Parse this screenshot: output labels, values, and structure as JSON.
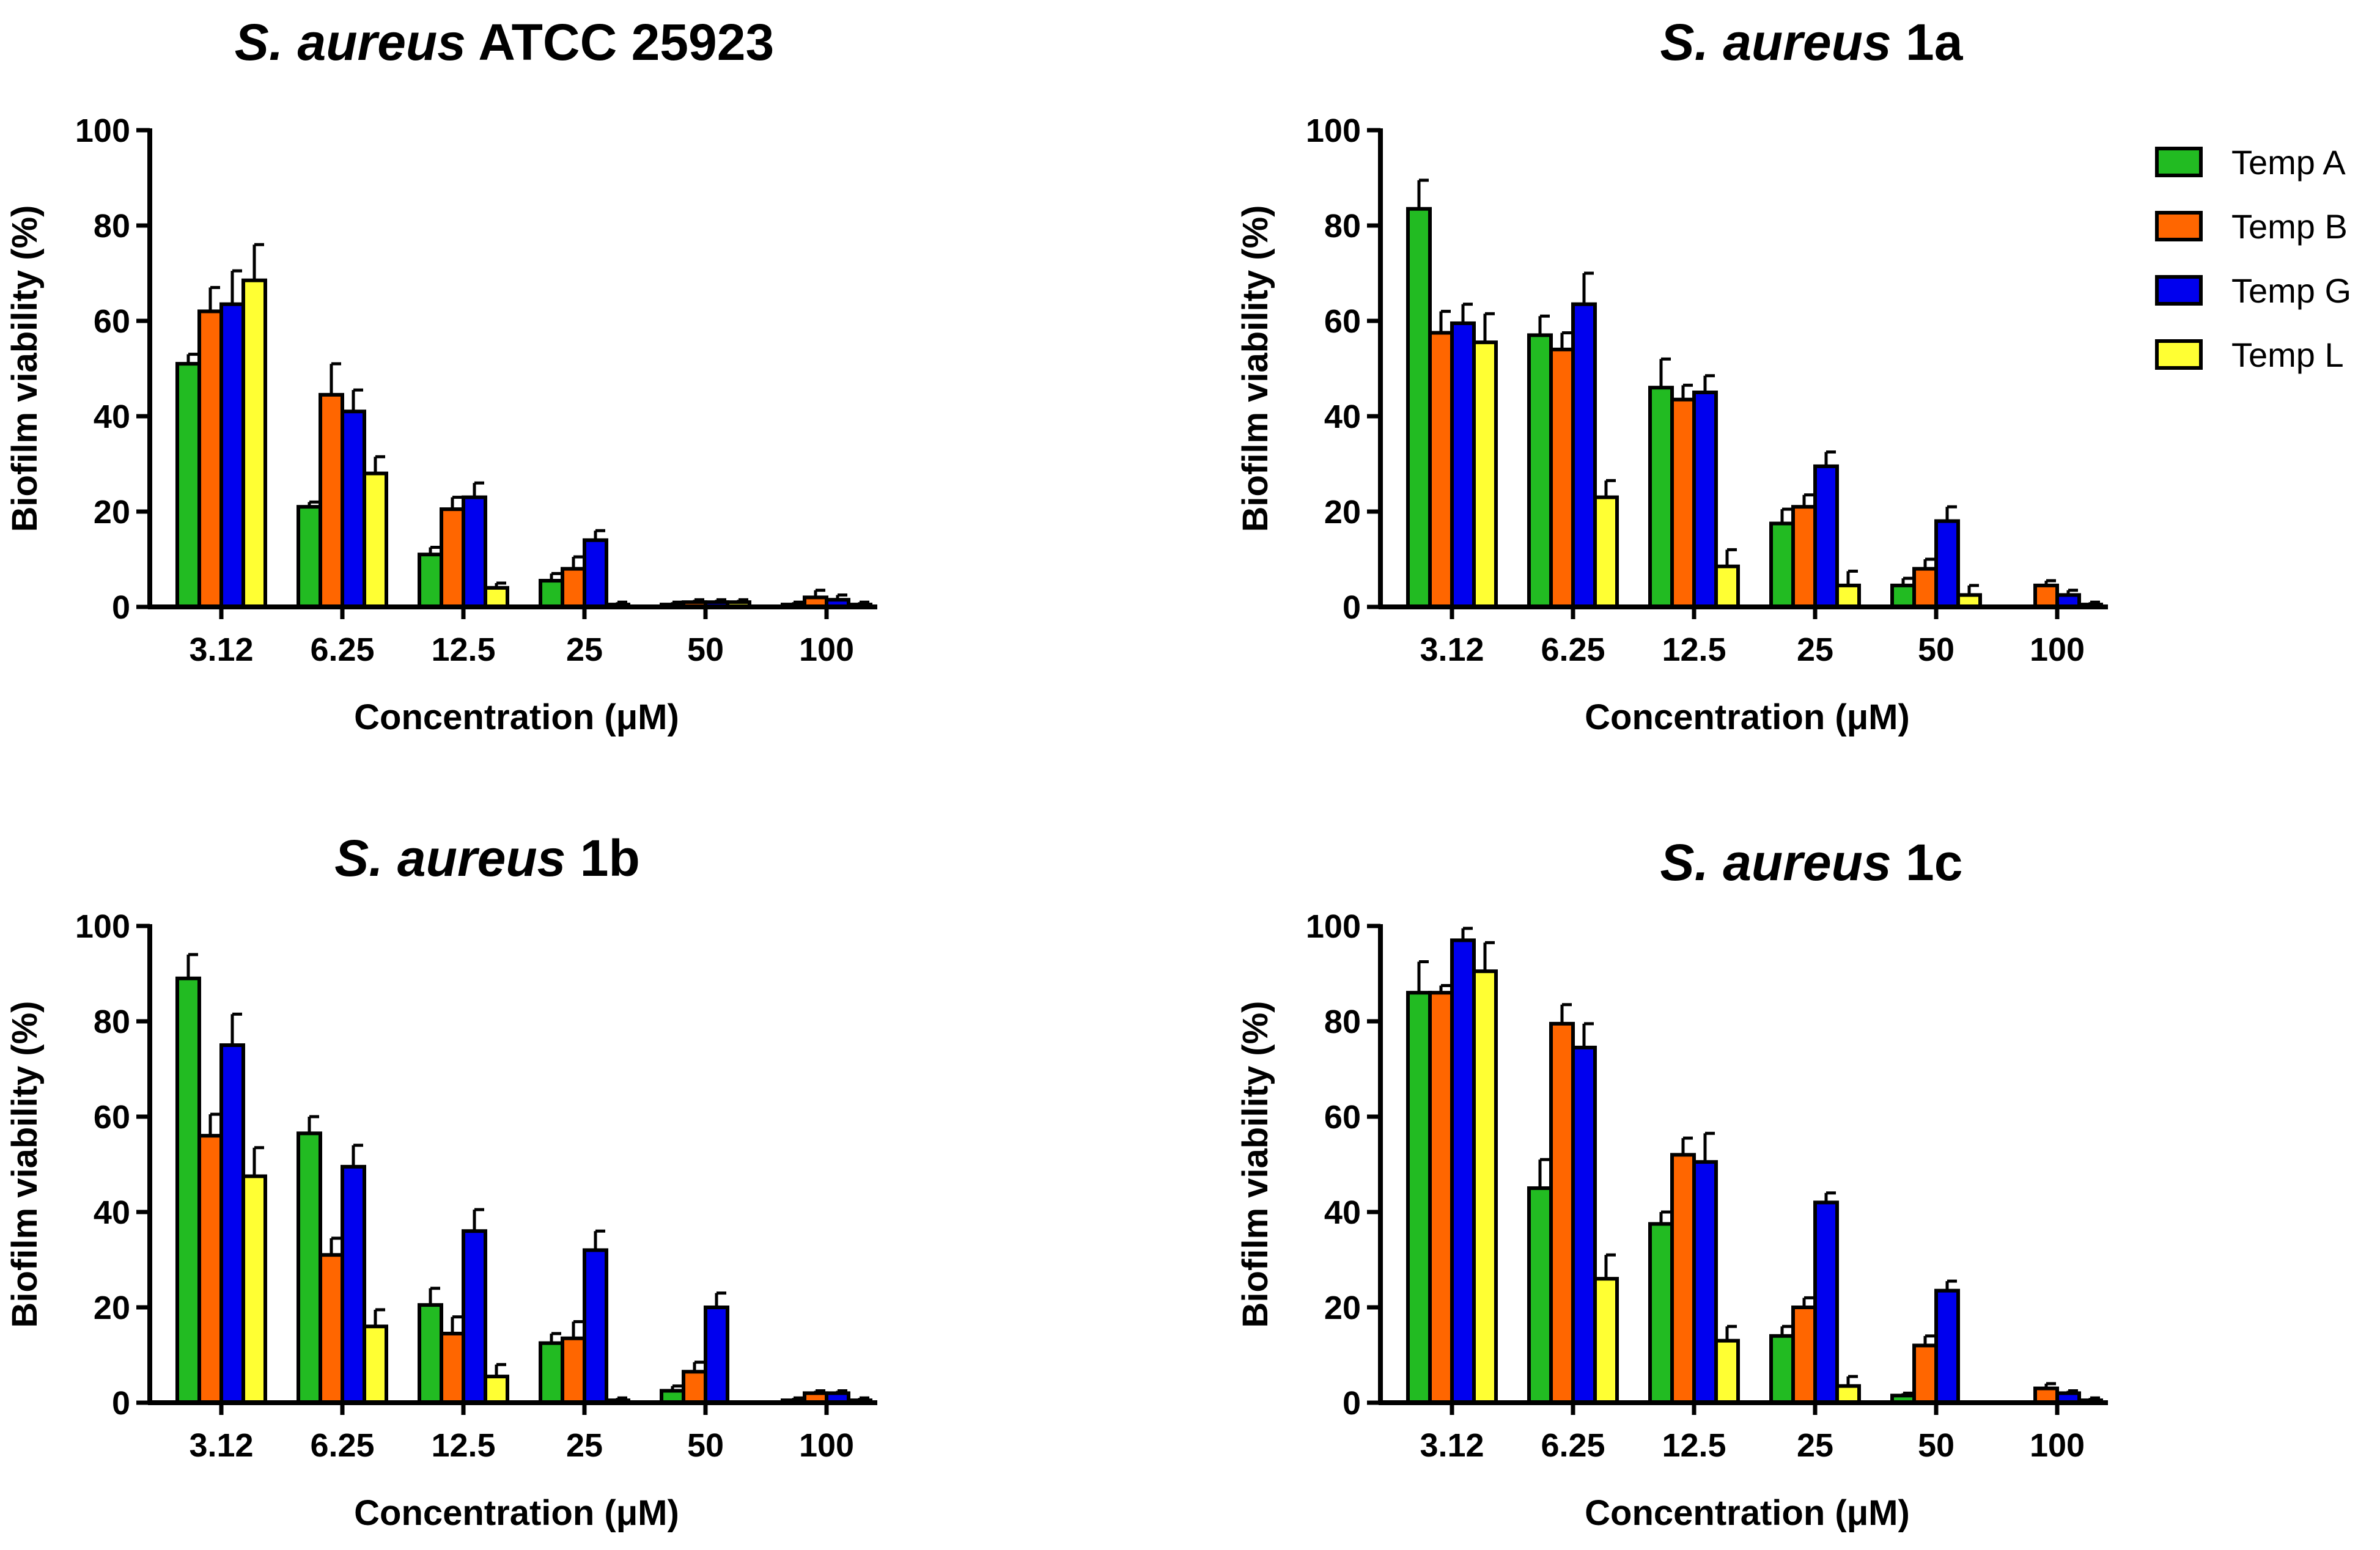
{
  "chart_data": [
    {
      "type": "bar",
      "title": "ATCC 25923",
      "title_italic": "S. aureus",
      "xlabel": "Concentration (μM)",
      "ylabel": "Biofilm viability (%)",
      "ylim": [
        0,
        100
      ],
      "yticks": [
        "0",
        "20",
        "40",
        "60",
        "80",
        "100"
      ],
      "categories": [
        "3.12",
        "6.25",
        "12.5",
        "25",
        "50",
        "100"
      ],
      "series": [
        {
          "name": "Temp A",
          "values": [
            51,
            21,
            11,
            5.5,
            0.5,
            0.5
          ],
          "errors": [
            2,
            1,
            1.5,
            1.5,
            0.5,
            0.5
          ]
        },
        {
          "name": "Temp B",
          "values": [
            62,
            44.5,
            20.5,
            8,
            1,
            2
          ],
          "errors": [
            5,
            6.5,
            2.5,
            2.5,
            0.5,
            1.5
          ]
        },
        {
          "name": "Temp G",
          "values": [
            63.5,
            41,
            23,
            14,
            1,
            1.5
          ],
          "errors": [
            7,
            4.5,
            3,
            2,
            0.5,
            1
          ]
        },
        {
          "name": "Temp L",
          "values": [
            68.5,
            28,
            4,
            0.5,
            1,
            0.5
          ],
          "errors": [
            7.5,
            3.5,
            1,
            0.5,
            0.5,
            0.5
          ]
        }
      ]
    },
    {
      "type": "bar",
      "title": "1a",
      "title_italic": "S. aureus",
      "xlabel": "Concentration (μM)",
      "ylabel": "Biofilm viability (%)",
      "ylim": [
        0,
        100
      ],
      "yticks": [
        "0",
        "20",
        "40",
        "60",
        "80",
        "100"
      ],
      "categories": [
        "3.12",
        "6.25",
        "12.5",
        "25",
        "50",
        "100"
      ],
      "series": [
        {
          "name": "Temp A",
          "values": [
            83.5,
            57,
            46,
            17.5,
            4.5,
            0
          ],
          "errors": [
            6,
            4,
            6,
            3,
            1.5,
            0
          ]
        },
        {
          "name": "Temp B",
          "values": [
            57.5,
            54,
            43.5,
            21,
            8,
            4.5
          ],
          "errors": [
            4.5,
            3.5,
            3,
            2.5,
            2,
            1
          ]
        },
        {
          "name": "Temp G",
          "values": [
            59.5,
            63.5,
            45,
            29.5,
            18,
            2.5
          ],
          "errors": [
            4,
            6.5,
            3.5,
            3,
            3,
            1
          ]
        },
        {
          "name": "Temp L",
          "values": [
            55.5,
            23,
            8.5,
            4.5,
            2.5,
            0.5
          ],
          "errors": [
            6,
            3.5,
            3.5,
            3,
            2,
            0.5
          ]
        }
      ]
    },
    {
      "type": "bar",
      "title": "1b",
      "title_italic": "S. aureus",
      "xlabel": "Concentration (μM)",
      "ylabel": "Biofilm viability (%)",
      "ylim": [
        0,
        100
      ],
      "yticks": [
        "0",
        "20",
        "40",
        "60",
        "80",
        "100"
      ],
      "categories": [
        "3.12",
        "6.25",
        "12.5",
        "25",
        "50",
        "100"
      ],
      "series": [
        {
          "name": "Temp A",
          "values": [
            89,
            56.5,
            20.5,
            12.5,
            2.5,
            0.5
          ],
          "errors": [
            5,
            3.5,
            3.5,
            2,
            1,
            0.5
          ]
        },
        {
          "name": "Temp B",
          "values": [
            56,
            31,
            14.5,
            13.5,
            6.5,
            2
          ],
          "errors": [
            4.5,
            3.5,
            3.5,
            3.5,
            2,
            0.5
          ]
        },
        {
          "name": "Temp G",
          "values": [
            75,
            49.5,
            36,
            32,
            20,
            2
          ],
          "errors": [
            6.5,
            4.5,
            4.5,
            4,
            3,
            0.5
          ]
        },
        {
          "name": "Temp L",
          "values": [
            47.5,
            16,
            5.5,
            0.5,
            0,
            0.5
          ],
          "errors": [
            6,
            3.5,
            2.5,
            0.5,
            0,
            0.5
          ]
        }
      ]
    },
    {
      "type": "bar",
      "title": "1c",
      "title_italic": "S. aureus",
      "xlabel": "Concentration (μM)",
      "ylabel": "Biofilm viability (%)",
      "ylim": [
        0,
        100
      ],
      "yticks": [
        "0",
        "20",
        "40",
        "60",
        "80",
        "100"
      ],
      "categories": [
        "3.12",
        "6.25",
        "12.5",
        "25",
        "50",
        "100"
      ],
      "series": [
        {
          "name": "Temp A",
          "values": [
            86,
            45,
            37.5,
            14,
            1.5,
            0
          ],
          "errors": [
            6.5,
            6,
            2.5,
            2,
            0.5,
            0
          ]
        },
        {
          "name": "Temp B",
          "values": [
            86,
            79.5,
            52,
            20,
            12,
            3
          ],
          "errors": [
            1.5,
            4,
            3.5,
            2,
            2,
            1
          ]
        },
        {
          "name": "Temp G",
          "values": [
            97,
            74.5,
            50.5,
            42,
            23.5,
            2
          ],
          "errors": [
            2.5,
            5,
            6,
            2,
            2,
            0.5
          ]
        },
        {
          "name": "Temp L",
          "values": [
            90.5,
            26,
            13,
            3.5,
            0,
            0.5
          ],
          "errors": [
            6,
            5,
            3,
            2,
            0,
            0.5
          ]
        }
      ]
    }
  ],
  "legend": {
    "position": "top-right",
    "items": [
      {
        "label": "Temp A",
        "color": "#22bb22"
      },
      {
        "label": "Temp B",
        "color": "#ff6600"
      },
      {
        "label": "Temp G",
        "color": "#0000ee"
      },
      {
        "label": "Temp L",
        "color": "#ffff33"
      }
    ]
  }
}
